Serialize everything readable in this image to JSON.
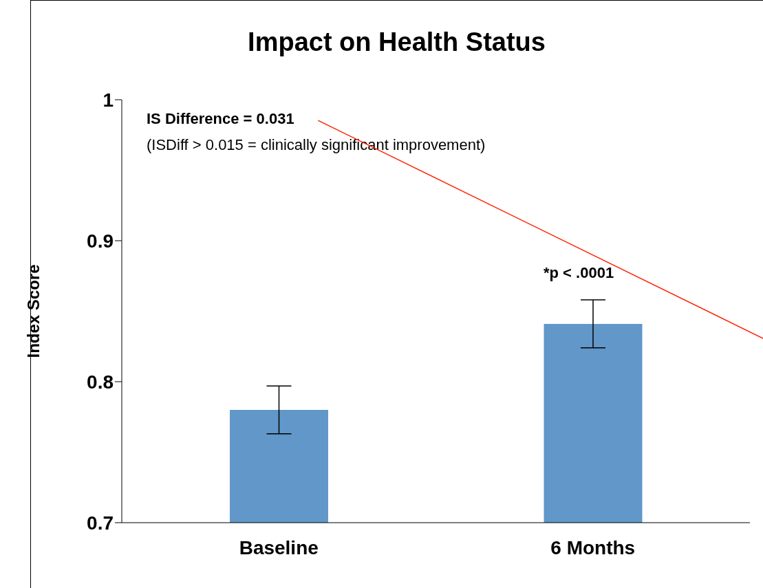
{
  "chart_data": {
    "type": "bar",
    "title": "Impact on Health Status",
    "ylabel": "Index Score",
    "categories": [
      "Baseline",
      "6 Months"
    ],
    "values": [
      0.78,
      0.841
    ],
    "errors": [
      0.017,
      0.017
    ],
    "color": "#6197c9",
    "ylim": [
      0.7,
      1
    ],
    "yticks": [
      0.7,
      0.8,
      0.9,
      1
    ],
    "grid": false,
    "legend": false,
    "annotations": [
      "IS Difference = 0.031",
      "(ISDiff > 0.015 = clinically significant improvement)",
      "*p < .0001"
    ]
  }
}
